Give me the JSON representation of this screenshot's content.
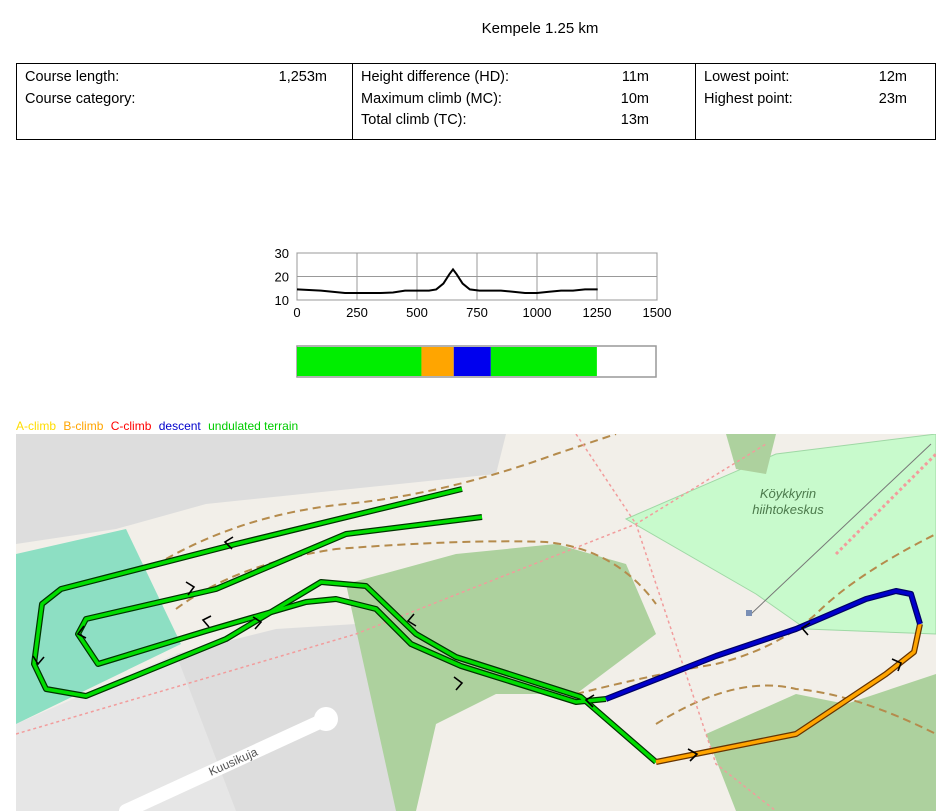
{
  "title": "Kempele 1.25 km",
  "stats": {
    "col1": [
      {
        "label": "Course length:",
        "value": "1,253m"
      },
      {
        "label": "Course category:",
        "value": ""
      }
    ],
    "col2": [
      {
        "label": "Height difference (HD):",
        "value": "11m"
      },
      {
        "label": "Maximum climb (MC):",
        "value": "10m"
      },
      {
        "label": "Total climb (TC):",
        "value": "13m"
      }
    ],
    "col3": [
      {
        "label": "Lowest point:",
        "value": "12m"
      },
      {
        "label": "Highest point:",
        "value": "23m"
      }
    ]
  },
  "chart_data": {
    "type": "line",
    "x": [
      0,
      100,
      200,
      250,
      300,
      350,
      400,
      450,
      500,
      550,
      580,
      610,
      635,
      650,
      665,
      690,
      720,
      760,
      800,
      850,
      900,
      950,
      1000,
      1050,
      1100,
      1150,
      1200,
      1253
    ],
    "y": [
      14.5,
      14,
      13,
      13,
      13,
      13,
      13.2,
      14,
      14,
      14,
      14.5,
      17,
      21,
      23,
      21,
      17,
      14.5,
      14,
      14,
      14,
      13.5,
      13,
      13,
      13.5,
      14,
      14,
      14.5,
      14.5
    ],
    "xlim": [
      0,
      1500
    ],
    "ylim": [
      10,
      30
    ],
    "xticks": [
      "0",
      "250",
      "500",
      "750",
      "1000",
      "1250",
      "1500"
    ],
    "yticks": [
      "10",
      "20",
      "30"
    ],
    "grid": true,
    "line_color": "#000000"
  },
  "segment_bar": {
    "segments": [
      {
        "from": 0,
        "to": 520,
        "color": "#00ee00"
      },
      {
        "from": 520,
        "to": 655,
        "color": "#ffa500"
      },
      {
        "from": 655,
        "to": 810,
        "color": "#0000ee"
      },
      {
        "from": 810,
        "to": 1253,
        "color": "#00ee00"
      }
    ],
    "max": 1500
  },
  "legend": [
    {
      "label": "A-climb",
      "color": "#ffdd00"
    },
    {
      "label": "B-climb",
      "color": "#ffa500"
    },
    {
      "label": "C-climb",
      "color": "#ff0000"
    },
    {
      "label": "descent",
      "color": "#0000cc"
    },
    {
      "label": "undulated terrain",
      "color": "#00cc00"
    }
  ],
  "map": {
    "labels": {
      "street": "Kuusikuja",
      "park_line1": "Köykkyrin",
      "park_line2": "hiihtokeskus"
    },
    "colors": {
      "background": "#f2efe9",
      "forest": "#add19e",
      "park": "#c8facc",
      "water": "#8ddfc3",
      "parking": "#dddddd",
      "green_route": "#00cc00",
      "blue_route": "#0000cc",
      "orange_route": "#ffa500"
    }
  }
}
